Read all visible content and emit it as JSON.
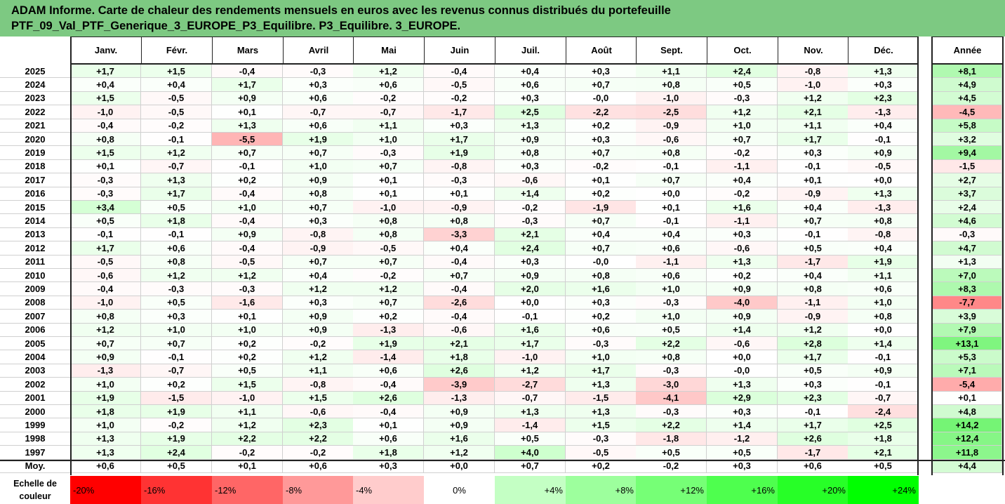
{
  "title": {
    "line1": "ADAM Informe. Carte de chaleur des rendements mensuels en euros avec les revenus connus distribués du portefeuille",
    "line2": "PTF_09_Val_PTF_Generique_3_EUROPE_P3_Equilibre. P3_Equilibre. 3_EUROPE."
  },
  "chart_data": {
    "type": "heatmap",
    "columns": [
      "Janv.",
      "Févr.",
      "Mars",
      "Avril",
      "Mai",
      "Juin",
      "Juil.",
      "Août",
      "Sept.",
      "Oct.",
      "Nov.",
      "Déc."
    ],
    "year_column": "Année",
    "rows": [
      {
        "year": "2025",
        "values": [
          "+1,7",
          "+1,5",
          "-0,4",
          "-0,3",
          "+1,2",
          "-0,4",
          "+0,4",
          "+0,3",
          "+1,1",
          "+2,4",
          "-0,8",
          "+1,3"
        ],
        "annual": "+8,1"
      },
      {
        "year": "2024",
        "values": [
          "+0,4",
          "+0,4",
          "+1,7",
          "+0,3",
          "+0,6",
          "-0,5",
          "+0,6",
          "+0,7",
          "+0,8",
          "+0,5",
          "-1,0",
          "+0,3"
        ],
        "annual": "+4,9"
      },
      {
        "year": "2023",
        "values": [
          "+1,5",
          "-0,5",
          "+0,9",
          "+0,6",
          "-0,2",
          "-0,2",
          "+0,3",
          "-0,0",
          "-1,0",
          "-0,3",
          "+1,2",
          "+2,3"
        ],
        "annual": "+4,5"
      },
      {
        "year": "2022",
        "values": [
          "-1,0",
          "-0,5",
          "+0,1",
          "-0,7",
          "-0,7",
          "-1,7",
          "+2,5",
          "-2,2",
          "-2,5",
          "+1,2",
          "+2,1",
          "-1,3"
        ],
        "annual": "-4,5"
      },
      {
        "year": "2021",
        "values": [
          "-0,4",
          "-0,2",
          "+1,3",
          "+0,6",
          "+1,1",
          "+0,3",
          "+1,3",
          "+0,2",
          "-0,9",
          "+1,0",
          "+1,1",
          "+0,4"
        ],
        "annual": "+5,8"
      },
      {
        "year": "2020",
        "values": [
          "+0,8",
          "-0,1",
          "-5,5",
          "+1,9",
          "+1,0",
          "+1,7",
          "+0,9",
          "+0,3",
          "-0,6",
          "+0,7",
          "+1,7",
          "-0,1"
        ],
        "annual": "+3,2"
      },
      {
        "year": "2019",
        "values": [
          "+1,5",
          "+1,2",
          "+0,7",
          "+0,7",
          "-0,3",
          "+1,9",
          "+0,8",
          "+0,7",
          "+0,8",
          "-0,2",
          "+0,3",
          "+0,9"
        ],
        "annual": "+9,4"
      },
      {
        "year": "2018",
        "values": [
          "+0,1",
          "-0,7",
          "-0,1",
          "+1,0",
          "+0,7",
          "-0,8",
          "+0,3",
          "-0,2",
          "-0,1",
          "-1,1",
          "-0,1",
          "-0,5"
        ],
        "annual": "-1,5"
      },
      {
        "year": "2017",
        "values": [
          "-0,3",
          "+1,3",
          "+0,2",
          "+0,9",
          "+0,1",
          "-0,3",
          "-0,6",
          "+0,1",
          "+0,7",
          "+0,4",
          "+0,1",
          "+0,0"
        ],
        "annual": "+2,7"
      },
      {
        "year": "2016",
        "values": [
          "-0,3",
          "+1,7",
          "-0,4",
          "+0,8",
          "+0,1",
          "+0,1",
          "+1,4",
          "+0,2",
          "+0,0",
          "-0,2",
          "-0,9",
          "+1,3"
        ],
        "annual": "+3,7"
      },
      {
        "year": "2015",
        "values": [
          "+3,4",
          "+0,5",
          "+1,0",
          "+0,7",
          "-1,0",
          "-0,9",
          "-0,2",
          "-1,9",
          "+0,1",
          "+1,6",
          "+0,4",
          "-1,3"
        ],
        "annual": "+2,4"
      },
      {
        "year": "2014",
        "values": [
          "+0,5",
          "+1,8",
          "-0,4",
          "+0,3",
          "+0,8",
          "+0,8",
          "-0,3",
          "+0,7",
          "-0,1",
          "-1,1",
          "+0,7",
          "+0,8"
        ],
        "annual": "+4,6"
      },
      {
        "year": "2013",
        "values": [
          "-0,1",
          "-0,1",
          "+0,9",
          "-0,8",
          "+0,8",
          "-3,3",
          "+2,1",
          "+0,4",
          "+0,4",
          "+0,3",
          "-0,1",
          "-0,8"
        ],
        "annual": "-0,3"
      },
      {
        "year": "2012",
        "values": [
          "+1,7",
          "+0,6",
          "-0,4",
          "-0,9",
          "-0,5",
          "+0,4",
          "+2,4",
          "+0,7",
          "+0,6",
          "-0,6",
          "+0,5",
          "+0,4"
        ],
        "annual": "+4,7"
      },
      {
        "year": "2011",
        "values": [
          "-0,5",
          "+0,8",
          "-0,5",
          "+0,7",
          "+0,7",
          "-0,4",
          "+0,3",
          "-0,0",
          "-1,1",
          "+1,3",
          "-1,7",
          "+1,9"
        ],
        "annual": "+1,3"
      },
      {
        "year": "2010",
        "values": [
          "-0,6",
          "+1,2",
          "+1,2",
          "+0,4",
          "-0,2",
          "+0,7",
          "+0,9",
          "+0,8",
          "+0,6",
          "+0,2",
          "+0,4",
          "+1,1"
        ],
        "annual": "+7,0"
      },
      {
        "year": "2009",
        "values": [
          "-0,4",
          "-0,3",
          "-0,3",
          "+1,2",
          "+1,2",
          "-0,4",
          "+2,0",
          "+1,6",
          "+1,0",
          "+0,9",
          "+0,8",
          "+0,6"
        ],
        "annual": "+8,3"
      },
      {
        "year": "2008",
        "values": [
          "-1,0",
          "+0,5",
          "-1,6",
          "+0,3",
          "+0,7",
          "-2,6",
          "+0,0",
          "+0,3",
          "-0,3",
          "-4,0",
          "-1,1",
          "+1,0"
        ],
        "annual": "-7,7"
      },
      {
        "year": "2007",
        "values": [
          "+0,8",
          "+0,3",
          "+0,1",
          "+0,9",
          "+0,2",
          "-0,4",
          "-0,1",
          "+0,2",
          "+1,0",
          "+0,9",
          "-0,9",
          "+0,8"
        ],
        "annual": "+3,9"
      },
      {
        "year": "2006",
        "values": [
          "+1,2",
          "+1,0",
          "+1,0",
          "+0,9",
          "-1,3",
          "-0,6",
          "+1,6",
          "+0,6",
          "+0,5",
          "+1,4",
          "+1,2",
          "+0,0"
        ],
        "annual": "+7,9"
      },
      {
        "year": "2005",
        "values": [
          "+0,7",
          "+0,7",
          "+0,2",
          "-0,2",
          "+1,9",
          "+2,1",
          "+1,7",
          "-0,3",
          "+2,2",
          "-0,6",
          "+2,8",
          "+1,4"
        ],
        "annual": "+13,1"
      },
      {
        "year": "2004",
        "values": [
          "+0,9",
          "-0,1",
          "+0,2",
          "+1,2",
          "-1,4",
          "+1,8",
          "-1,0",
          "+1,0",
          "+0,8",
          "+0,0",
          "+1,7",
          "-0,1"
        ],
        "annual": "+5,3"
      },
      {
        "year": "2003",
        "values": [
          "-1,3",
          "-0,7",
          "+0,5",
          "+1,1",
          "+0,6",
          "+2,6",
          "+1,2",
          "+1,7",
          "-0,3",
          "-0,0",
          "+0,5",
          "+0,9"
        ],
        "annual": "+7,1"
      },
      {
        "year": "2002",
        "values": [
          "+1,0",
          "+0,2",
          "+1,5",
          "-0,8",
          "-0,4",
          "-3,9",
          "-2,7",
          "+1,3",
          "-3,0",
          "+1,3",
          "+0,3",
          "-0,1"
        ],
        "annual": "-5,4"
      },
      {
        "year": "2001",
        "values": [
          "+1,9",
          "-1,5",
          "-1,0",
          "+1,5",
          "+2,6",
          "-1,3",
          "-0,7",
          "-1,5",
          "-4,1",
          "+2,9",
          "+2,3",
          "-0,7"
        ],
        "annual": "+0,1"
      },
      {
        "year": "2000",
        "values": [
          "+1,8",
          "+1,9",
          "+1,1",
          "-0,6",
          "-0,4",
          "+0,9",
          "+1,3",
          "+1,3",
          "-0,3",
          "+0,3",
          "-0,1",
          "-2,4"
        ],
        "annual": "+4,8"
      },
      {
        "year": "1999",
        "values": [
          "+1,0",
          "-0,2",
          "+1,2",
          "+2,3",
          "+0,1",
          "+0,9",
          "-1,4",
          "+1,5",
          "+2,2",
          "+1,4",
          "+1,7",
          "+2,5"
        ],
        "annual": "+14,2"
      },
      {
        "year": "1998",
        "values": [
          "+1,3",
          "+1,9",
          "+2,2",
          "+2,2",
          "+0,6",
          "+1,6",
          "+0,5",
          "-0,3",
          "-1,8",
          "-1,2",
          "+2,6",
          "+1,8"
        ],
        "annual": "+12,4"
      },
      {
        "year": "1997",
        "values": [
          "+1,3",
          "+2,4",
          "-0,2",
          "-0,2",
          "+1,8",
          "+1,2",
          "+4,0",
          "-0,5",
          "+0,5",
          "+0,5",
          "-1,7",
          "+2,1"
        ],
        "annual": "+11,8"
      }
    ],
    "average": {
      "label": "Moy.",
      "values": [
        "+0,6",
        "+0,5",
        "+0,1",
        "+0,6",
        "+0,3",
        "+0,0",
        "+0,7",
        "+0,2",
        "-0,2",
        "+0,3",
        "+0,6",
        "+0,5"
      ],
      "annual": "+4,4"
    },
    "scale": {
      "label_line1": "Echelle de",
      "label_line2": "couleur",
      "steps": [
        "-20%",
        "-16%",
        "-12%",
        "-8%",
        "-4%",
        "0%",
        "+4%",
        "+8%",
        "+12%",
        "+16%",
        "+20%",
        "+24%"
      ],
      "step_values": [
        -20,
        -16,
        -12,
        -8,
        -4,
        0,
        4,
        8,
        12,
        16,
        20,
        24
      ]
    },
    "colors": {
      "negative_max": "#ff0000",
      "neutral": "#ffffff",
      "positive_max": "#00ff00",
      "title_bg": "#7dc982"
    }
  }
}
